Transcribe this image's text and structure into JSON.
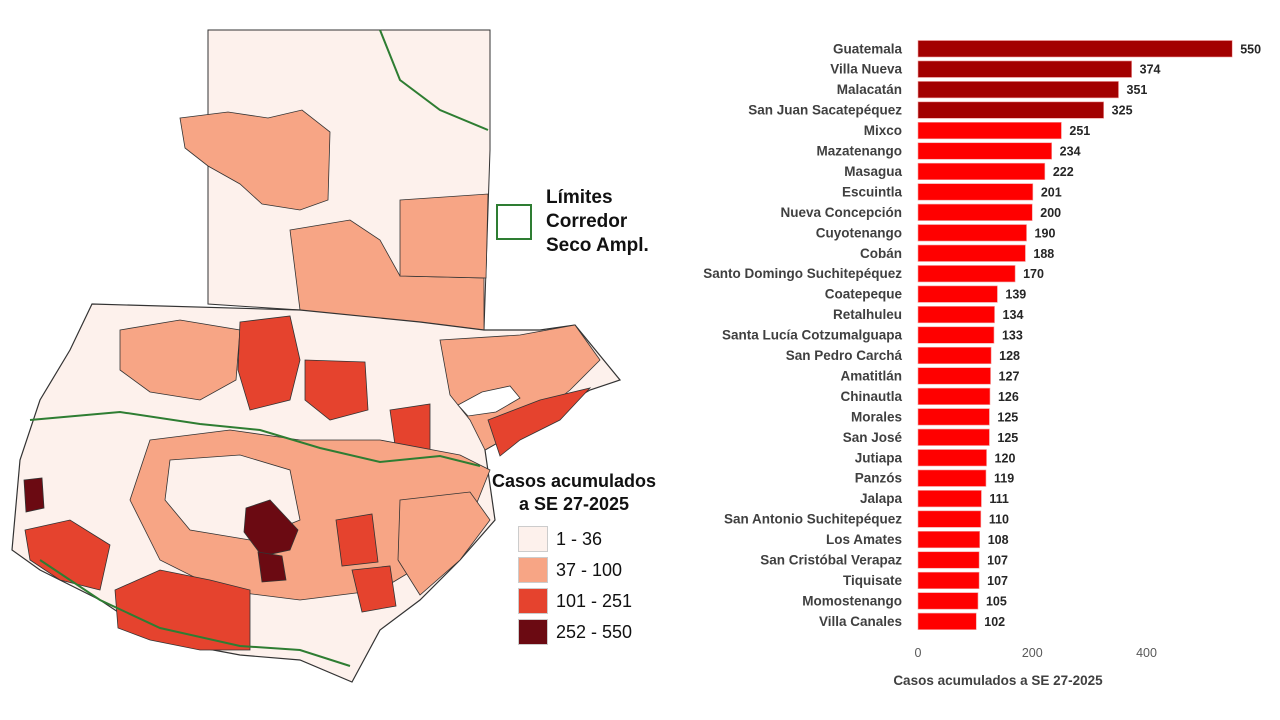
{
  "map_legend": {
    "corridor_lines": [
      "Límites",
      "Corredor",
      "Seco Ampl."
    ],
    "corridor_color": "#2e7d32",
    "cases_title_lines": [
      "Casos acumulados",
      "a SE 27-2025"
    ],
    "classes": [
      {
        "label": "1 - 36",
        "color": "#fdf1ec"
      },
      {
        "label": "37 - 100",
        "color": "#f7a585"
      },
      {
        "label": "101 - 251",
        "color": "#e5432e"
      },
      {
        "label": "252 - 550",
        "color": "#6b0a12"
      }
    ]
  },
  "chart_data": {
    "type": "bar",
    "orientation": "horizontal",
    "categories": [
      "Guatemala",
      "Villa Nueva",
      "Malacatán",
      "San Juan Sacatepéquez",
      "Mixco",
      "Mazatenango",
      "Masagua",
      "Escuintla",
      "Nueva Concepción",
      "Cuyotenango",
      "Cobán",
      "Santo Domingo Suchitepéquez",
      "Coatepeque",
      "Retalhuleu",
      "Santa Lucía Cotzumalguapa",
      "San Pedro Carchá",
      "Amatitlán",
      "Chinautla",
      "Morales",
      "San José",
      "Jutiapa",
      "Panzós",
      "Jalapa",
      "San Antonio Suchitepéquez",
      "Los Amates",
      "San Cristóbal Verapaz",
      "Tiquisate",
      "Momostenango",
      "Villa Canales"
    ],
    "values": [
      550,
      374,
      351,
      325,
      251,
      234,
      222,
      201,
      200,
      190,
      188,
      170,
      139,
      134,
      133,
      128,
      127,
      126,
      125,
      125,
      120,
      119,
      111,
      110,
      108,
      107,
      107,
      105,
      102
    ],
    "colors": {
      "high": "#a30000",
      "mid": "#ff0000"
    },
    "high_threshold": 252,
    "xlim": [
      0,
      560
    ],
    "xticks": [
      0,
      200,
      400
    ],
    "xlabel": "Casos acumulados a SE 27-2025",
    "grid": false
  }
}
